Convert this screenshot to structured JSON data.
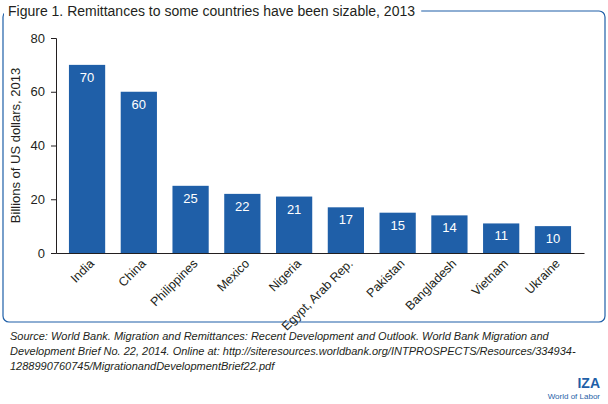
{
  "chart_data": {
    "type": "bar",
    "title": "Figure 1. Remittances to some countries have been sizable, 2013",
    "y_label": "Billions of US dollars, 2013",
    "categories": [
      "India",
      "China",
      "Philippines",
      "Mexico",
      "Nigeria",
      "Egypt, Arab Rep.",
      "Pakistan",
      "Bangladesh",
      "Vietnam",
      "Ukraine"
    ],
    "values": [
      70,
      60,
      25,
      22,
      21,
      17,
      15,
      14,
      11,
      10
    ],
    "color": "#1f5fa8",
    "ylim": [
      0,
      80
    ],
    "yticks": [
      0,
      20,
      40,
      60,
      80
    ],
    "grid": false,
    "data_labels": true,
    "source": [
      "Source: World Bank. Migration and Remittances: Recent Development and Outlook. World Bank Migration and",
      "Development Brief No. 22, 2014. Online at: http://siteresources.worldbank.org/INTPROSPECTS/Resources/334934-",
      "1288990760745/MigrationandDevelopmentBrief22.pdf"
    ],
    "logo": [
      "IZA",
      "World of Labor"
    ]
  }
}
